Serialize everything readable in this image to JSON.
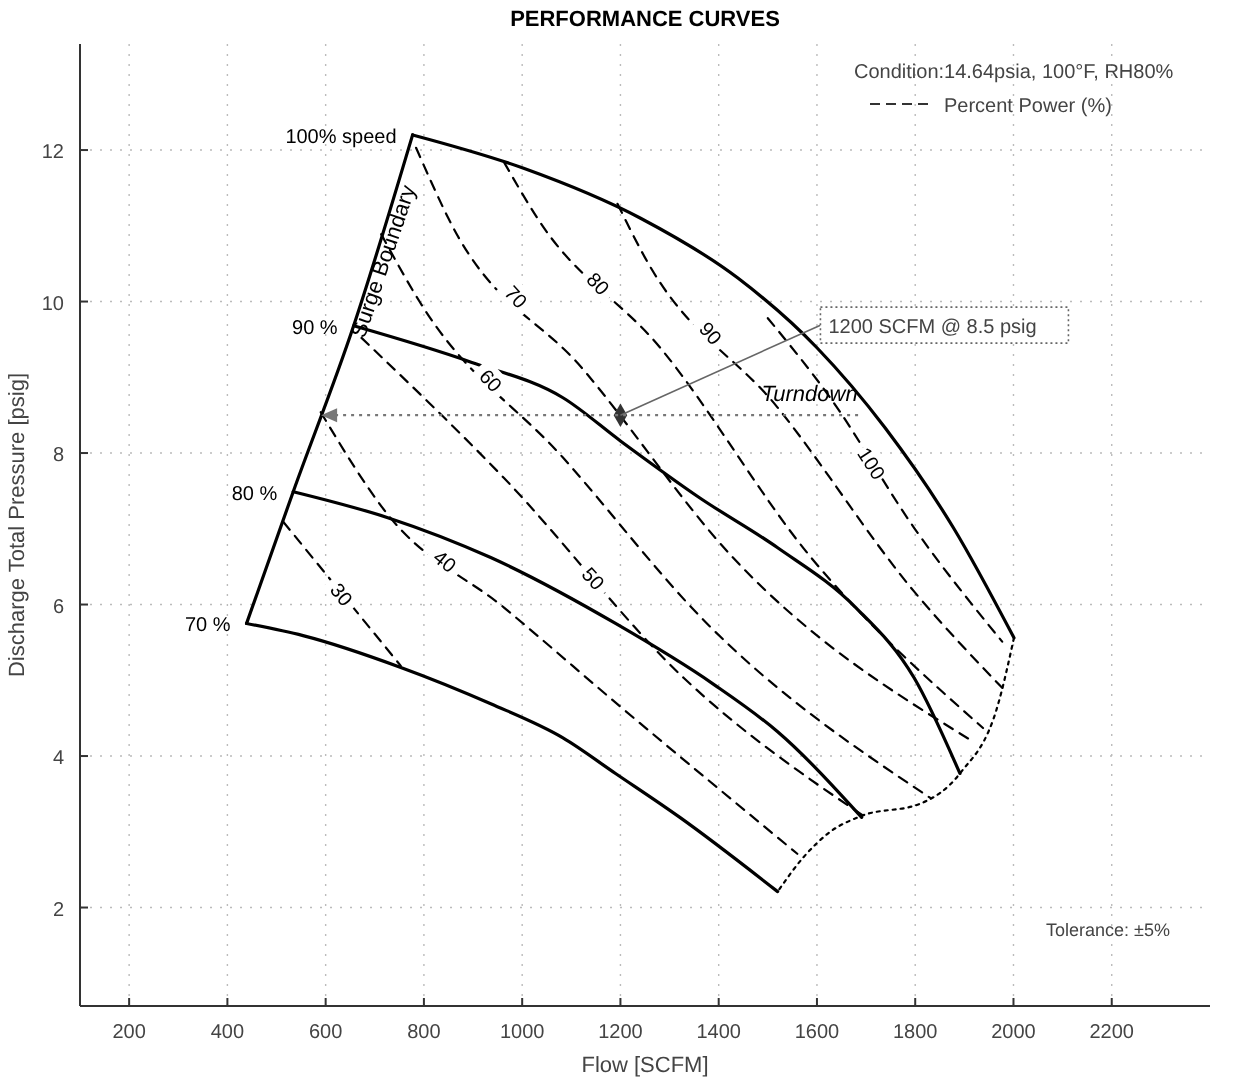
{
  "chart_data": {
    "type": "line",
    "title": "PERFORMANCE CURVES",
    "xlabel": "Flow [SCFM]",
    "ylabel": "Discharge Total Pressure [psig]",
    "xlim": [
      100,
      2400
    ],
    "ylim": [
      0.7,
      13.4
    ],
    "xticks": [
      200,
      400,
      600,
      800,
      1000,
      1200,
      1400,
      1600,
      1800,
      2000,
      2200
    ],
    "yticks": [
      2,
      4,
      6,
      8,
      10,
      12
    ],
    "grid": true,
    "marker": "none",
    "series": [
      {
        "name": "Surge Boundary",
        "color": "#000000",
        "line_style": "solid",
        "x": [
          439,
          534,
          657,
          777
        ],
        "values": [
          5.75,
          7.49,
          9.68,
          12.2
        ]
      },
      {
        "name": "100% speed",
        "color": "#000000",
        "line_style": "solid",
        "x": [
          777,
          1003,
          1241,
          1439,
          1600,
          1739,
          1878,
          2001
        ],
        "values": [
          12.2,
          11.76,
          11.1,
          10.31,
          9.39,
          8.33,
          7.01,
          5.56
        ]
      },
      {
        "name": "90 %",
        "color": "#000000",
        "line_style": "solid",
        "x": [
          657,
          896,
          1083,
          1202,
          1361,
          1520,
          1679,
          1798,
          1891
        ],
        "values": [
          9.68,
          9.2,
          8.73,
          8.15,
          7.41,
          6.75,
          5.96,
          5.03,
          3.77
        ]
      },
      {
        "name": "80 %",
        "color": "#000000",
        "line_style": "solid",
        "x": [
          534,
          725,
          936,
          1190,
          1389,
          1520,
          1691
        ],
        "values": [
          7.49,
          7.15,
          6.62,
          5.75,
          4.95,
          4.32,
          3.19
        ]
      },
      {
        "name": "70 %",
        "color": "#000000",
        "line_style": "solid",
        "x": [
          439,
          554,
          753,
          936,
          1083,
          1190,
          1321,
          1520
        ],
        "values": [
          5.75,
          5.59,
          5.17,
          4.69,
          4.24,
          3.77,
          3.19,
          2.21
        ]
      },
      {
        "color": "#000000",
        "line_style": "dotted",
        "x": [
          2001,
          1969,
          1891,
          1810,
          1691,
          1627,
          1572,
          1520
        ],
        "values": [
          5.56,
          4.69,
          3.77,
          3.37,
          3.21,
          3.0,
          2.66,
          2.21
        ]
      },
      {
        "name": "30",
        "color": "#000000",
        "line_style": "dashed",
        "x": [
          514,
          753
        ],
        "values": [
          7.09,
          5.19
        ]
      },
      {
        "name": "40",
        "color": "#000000",
        "line_style": "dashed",
        "x": [
          590,
          725,
          963,
          1202,
          1560
        ],
        "values": [
          8.54,
          7.2,
          5.96,
          4.64,
          2.71
        ]
      },
      {
        "name": "50",
        "color": "#000000",
        "line_style": "dashed",
        "x": [
          673,
          963,
          1329,
          1699
        ],
        "values": [
          9.52,
          7.67,
          5.03,
          3.19
        ]
      },
      {
        "name": "60",
        "color": "#000000",
        "line_style": "dashed",
        "x": [
          713,
          792,
          1083,
          1373,
          1830
        ],
        "values": [
          10.89,
          9.99,
          7.94,
          5.77,
          3.45
        ]
      },
      {
        "name": "70",
        "color": "#000000",
        "line_style": "dashed",
        "x": [
          784,
          856,
          1122,
          1429,
          1918
        ],
        "values": [
          12.03,
          11.02,
          9.12,
          6.62,
          4.19
        ]
      },
      {
        "name": "80",
        "color": "#000000",
        "line_style": "dashed",
        "x": [
          963,
          1031,
          1281,
          1588,
          1938
        ],
        "values": [
          11.84,
          11.1,
          9.39,
          6.62,
          4.37
        ]
      },
      {
        "name": "90",
        "color": "#000000",
        "line_style": "dashed",
        "x": [
          1194,
          1250,
          1520,
          1798,
          1977
        ],
        "values": [
          11.29,
          10.58,
          8.6,
          6.17,
          4.9
        ]
      },
      {
        "name": "100",
        "color": "#000000",
        "line_style": "dashed",
        "x": [
          1500,
          1627,
          1798,
          1977
        ],
        "values": [
          9.78,
          8.73,
          7.01,
          5.51
        ]
      },
      {
        "type": "scatter",
        "color": "#333333",
        "marker": "diamond",
        "x": [
          1200
        ],
        "values": [
          8.5
        ]
      }
    ],
    "annotations": [
      {
        "text": "1200 SCFM @ 8.5 psig",
        "x": 1200,
        "y": 8.5
      },
      {
        "text": "Turndown",
        "x": 1691,
        "y": 8.5
      },
      "Condition:14.64psia, 100°F, RH80%",
      "Percent Power (%)",
      "Tolerance: ±5%"
    ]
  }
}
